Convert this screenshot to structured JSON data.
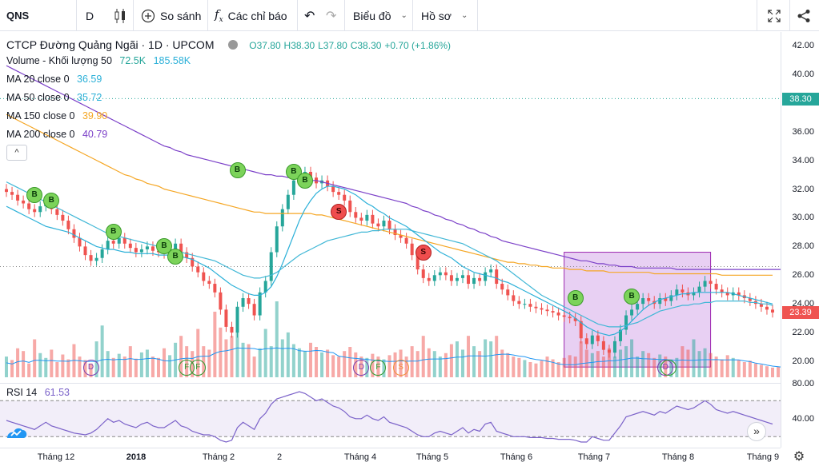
{
  "toolbar": {
    "symbol": "QNS",
    "interval": "D",
    "compare_label": "So sánh",
    "indicators_label": "Các chỉ báo",
    "chart_label": "Biểu đồ",
    "profile_label": "Hồ sơ"
  },
  "legend": {
    "title": "CTCP Đường Quảng Ngãi · 1D · UPCOM",
    "o": "O37.80",
    "h": "H38.30",
    "l": "L37.80",
    "c": "C38.30",
    "chg": "+0.70 (+1.86%)",
    "volume_label": "Volume - Khối lượng 50",
    "volume_v1": "72.5K",
    "volume_v2": "185.58K",
    "ma20_label": "MA 20 close 0",
    "ma20_value": "36.59",
    "ma50_label": "MA 50 close 0",
    "ma50_value": "35.72",
    "ma150_label": "MA 150 close 0",
    "ma150_value": "39.90",
    "ma200_label": "MA 200 close 0",
    "ma200_value": "40.79",
    "collapse_glyph": "^"
  },
  "price_axis": {
    "ticks": [
      "42.00",
      "40.00",
      "38.00",
      "36.00",
      "34.00",
      "32.00",
      "30.00",
      "28.00",
      "26.00",
      "24.00",
      "22.00",
      "20.00"
    ],
    "last_price": "38.30",
    "current_price": "23.39"
  },
  "rsi": {
    "label": "RSI 14",
    "value": "61.53",
    "ticks": [
      "80.00",
      "40.00"
    ]
  },
  "time_axis": [
    "Tháng 12",
    "2018",
    "Tháng 2",
    "2",
    "Tháng 4",
    "Tháng 5",
    "Tháng 6",
    "Tháng 7",
    "Tháng 8",
    "Tháng 9"
  ],
  "signals": [
    "B",
    "B",
    "B",
    "B",
    "B",
    "B",
    "B",
    "B",
    "S",
    "S",
    "B",
    "B"
  ],
  "events": [
    "D",
    "F",
    "F",
    "D",
    "F",
    "S",
    "D"
  ],
  "colors": {
    "up": "#26a69a",
    "down": "#ef5350",
    "ma20": "#2bb0d8",
    "ma50": "#40b7d6",
    "ma150": "#f5a623",
    "ma200": "#7b40c8",
    "rsi": "#7b62c9"
  },
  "chart_data": {
    "type": "candlestick",
    "title": "CTCP Đường Quảng Ngãi · 1D · UPCOM",
    "ylim": [
      19,
      43
    ],
    "rsi_ylim": [
      20,
      90
    ],
    "closes": [
      31.8,
      31.6,
      31.2,
      31.0,
      30.6,
      30.4,
      30.8,
      31.2,
      30.6,
      30.2,
      29.8,
      29.2,
      28.6,
      28.0,
      27.4,
      27.0,
      27.2,
      27.8,
      28.4,
      28.2,
      28.6,
      28.2,
      27.9,
      27.6,
      27.8,
      28.0,
      27.7,
      27.6,
      27.5,
      27.8,
      28.2,
      27.6,
      27.2,
      26.6,
      26.2,
      25.6,
      25.4,
      24.8,
      23.6,
      22.4,
      22.0,
      23.8,
      24.4,
      24.0,
      23.2,
      24.8,
      25.6,
      27.6,
      29.4,
      30.6,
      31.6,
      32.6,
      33.0,
      33.2,
      32.8,
      32.4,
      32.6,
      32.2,
      31.8,
      31.6,
      31.2,
      30.4,
      30.0,
      29.8,
      30.2,
      29.6,
      29.4,
      29.8,
      29.2,
      28.8,
      28.6,
      28.2,
      27.4,
      26.4,
      25.8,
      25.6,
      26.0,
      26.2,
      26.0,
      25.6,
      25.8,
      26.0,
      25.4,
      25.8,
      25.6,
      26.2,
      26.4,
      25.4,
      25.0,
      24.6,
      24.2,
      24.0,
      24.0,
      23.8,
      23.7,
      23.6,
      23.5,
      23.4,
      23.2,
      23.1,
      23.0,
      22.8,
      21.6,
      21.2,
      21.8,
      21.4,
      20.8,
      20.6,
      21.4,
      22.2,
      23.2,
      23.6,
      24.0,
      24.4,
      24.2,
      24.0,
      24.4,
      24.2,
      24.6,
      25.0,
      24.8,
      24.6,
      24.8,
      25.2,
      25.6,
      25.4,
      25.0,
      24.8,
      24.6,
      24.8,
      24.6,
      24.4,
      24.2,
      24.0,
      23.8,
      23.6,
      23.4
    ],
    "volumes": [
      30,
      25,
      42,
      38,
      20,
      55,
      35,
      28,
      40,
      22,
      33,
      26,
      48,
      30,
      25,
      20,
      52,
      75,
      38,
      28,
      34,
      30,
      45,
      27,
      36,
      40,
      30,
      28,
      42,
      32,
      50,
      60,
      45,
      38,
      70,
      45,
      40,
      95,
      72,
      55,
      60,
      88,
      50,
      48,
      30,
      42,
      70,
      45,
      110,
      55,
      65,
      48,
      42,
      38,
      50,
      44,
      36,
      40,
      32,
      30,
      38,
      44,
      36,
      30,
      28,
      34,
      30,
      26,
      32,
      36,
      40,
      30,
      45,
      38,
      60,
      42,
      38,
      30,
      35,
      48,
      52,
      40,
      60,
      45,
      38,
      55,
      52,
      60,
      40,
      35,
      30,
      28,
      25,
      22,
      20,
      24,
      30,
      26,
      22,
      28,
      32,
      30,
      52,
      40,
      35,
      38,
      30,
      42,
      30,
      40,
      45,
      55,
      30,
      38,
      35,
      28,
      33,
      30,
      26,
      28,
      45,
      40,
      55,
      38,
      42,
      35,
      30,
      26,
      32,
      28,
      25,
      22,
      24,
      20,
      18,
      16,
      14,
      15,
      13
    ],
    "rsi": [
      48,
      46,
      44,
      42,
      40,
      38,
      42,
      46,
      42,
      40,
      38,
      36,
      34,
      33,
      32,
      34,
      38,
      44,
      50,
      46,
      48,
      44,
      42,
      40,
      44,
      46,
      42,
      40,
      40,
      44,
      48,
      42,
      40,
      36,
      34,
      32,
      32,
      30,
      26,
      24,
      26,
      40,
      46,
      42,
      38,
      50,
      56,
      66,
      72,
      74,
      76,
      78,
      80,
      78,
      74,
      70,
      72,
      68,
      64,
      62,
      58,
      52,
      50,
      50,
      54,
      50,
      48,
      52,
      46,
      44,
      42,
      40,
      36,
      32,
      30,
      30,
      34,
      36,
      34,
      32,
      36,
      40,
      34,
      38,
      36,
      44,
      46,
      36,
      34,
      32,
      30,
      30,
      30,
      29,
      29,
      29,
      28,
      28,
      27,
      27,
      27,
      26,
      24,
      24,
      30,
      28,
      26,
      26,
      34,
      42,
      52,
      54,
      56,
      58,
      56,
      54,
      58,
      56,
      60,
      64,
      62,
      60,
      62,
      66,
      70,
      66,
      60,
      58,
      56,
      58,
      56,
      54,
      52,
      50,
      48,
      46,
      44
    ],
    "ma20": [
      30.8,
      30.6,
      30.4,
      30.2,
      30.0,
      29.8,
      29.6,
      29.4,
      29.3,
      29.2,
      29.1,
      29.0,
      28.8,
      28.6,
      28.4,
      28.2,
      28.0,
      27.9,
      27.8,
      27.8,
      27.7,
      27.6,
      27.6,
      27.5,
      27.5,
      27.5,
      27.5,
      27.4,
      27.4,
      27.4,
      27.4,
      27.3,
      27.2,
      27.1,
      26.9,
      26.7,
      26.5,
      26.2,
      25.9,
      25.6,
      25.3,
      25.1,
      24.9,
      24.7,
      24.6,
      24.6,
      24.8,
      25.2,
      25.9,
      26.8,
      27.8,
      28.8,
      29.8,
      30.6,
      31.2,
      31.7,
      32.0,
      32.2,
      32.2,
      32.1,
      32.0,
      31.8,
      31.6,
      31.3,
      31.0,
      30.8,
      30.5,
      30.3,
      30.0,
      29.8,
      29.6,
      29.4,
      29.1,
      28.8,
      28.5,
      28.2,
      27.9,
      27.6,
      27.4,
      27.2,
      26.9,
      26.6,
      26.4,
      26.2,
      26.1,
      26.0,
      25.9,
      25.8,
      25.6,
      25.5,
      25.3,
      25.1,
      24.9,
      24.7,
      24.5,
      24.3,
      24.1,
      23.9,
      23.7,
      23.5,
      23.3,
      23.0,
      22.7,
      22.4,
      22.2,
      22.0,
      21.9,
      21.8,
      21.9,
      22.1,
      22.4,
      22.8,
      23.2,
      23.6,
      23.9,
      24.1,
      24.3,
      24.4,
      24.5,
      24.6,
      24.7,
      24.7,
      24.8,
      24.8,
      24.8,
      24.8,
      24.8,
      24.8,
      24.8,
      24.7,
      24.6,
      24.5,
      24.4,
      24.3,
      24.2,
      24.1,
      24.0
    ],
    "ma50": [
      32.5,
      32.3,
      32.1,
      31.9,
      31.7,
      31.5,
      31.3,
      31.1,
      30.9,
      30.7,
      30.5,
      30.3,
      30.1,
      29.9,
      29.7,
      29.5,
      29.3,
      29.1,
      28.9,
      28.8,
      28.7,
      28.6,
      28.5,
      28.4,
      28.3,
      28.2,
      28.1,
      28.0,
      27.9,
      27.8,
      27.7,
      27.6,
      27.5,
      27.4,
      27.3,
      27.2,
      27.1,
      27.0,
      26.8,
      26.6,
      26.4,
      26.2,
      26.0,
      25.9,
      25.8,
      25.8,
      25.9,
      26.0,
      26.2,
      26.5,
      26.8,
      27.1,
      27.4,
      27.6,
      27.8,
      28.0,
      28.2,
      28.4,
      28.5,
      28.6,
      28.7,
      28.8,
      28.9,
      29.0,
      29.0,
      29.1,
      29.1,
      29.2,
      29.2,
      29.2,
      29.2,
      29.2,
      29.1,
      29.0,
      28.9,
      28.8,
      28.7,
      28.6,
      28.5,
      28.4,
      28.3,
      28.2,
      28.0,
      27.8,
      27.6,
      27.4,
      27.2,
      27.0,
      26.7,
      26.4,
      26.1,
      25.8,
      25.5,
      25.2,
      24.9,
      24.6,
      24.4,
      24.2,
      24.0,
      23.8,
      23.6,
      23.4,
      23.2,
      23.0,
      22.8,
      22.6,
      22.5,
      22.4,
      22.4,
      22.4,
      22.5,
      22.6,
      22.7,
      22.9,
      23.1,
      23.3,
      23.5,
      23.6,
      23.7,
      23.8,
      23.9,
      23.9,
      24.0,
      24.0,
      24.1,
      24.1,
      24.2,
      24.2,
      24.2,
      24.2,
      24.2,
      24.2,
      24.1,
      24.1,
      24.0,
      24.0,
      23.9
    ],
    "ma150": [
      37.2,
      37.0,
      36.8,
      36.6,
      36.4,
      36.2,
      36.0,
      35.8,
      35.6,
      35.4,
      35.2,
      35.0,
      34.8,
      34.6,
      34.4,
      34.2,
      34.0,
      33.8,
      33.6,
      33.4,
      33.2,
      33.0,
      32.9,
      32.7,
      32.6,
      32.4,
      32.3,
      32.2,
      32.0,
      31.9,
      31.8,
      31.7,
      31.6,
      31.5,
      31.4,
      31.3,
      31.2,
      31.1,
      31.0,
      30.9,
      30.8,
      30.7,
      30.6,
      30.5,
      30.4,
      30.4,
      30.3,
      30.3,
      30.3,
      30.3,
      30.3,
      30.3,
      30.3,
      30.3,
      30.3,
      30.2,
      30.2,
      30.1,
      30.0,
      29.9,
      29.8,
      29.7,
      29.6,
      29.5,
      29.4,
      29.3,
      29.2,
      29.1,
      29.0,
      28.9,
      28.8,
      28.7,
      28.6,
      28.5,
      28.4,
      28.3,
      28.2,
      28.1,
      28.0,
      27.9,
      27.8,
      27.7,
      27.6,
      27.5,
      27.4,
      27.3,
      27.2,
      27.1,
      27.0,
      26.9,
      26.9,
      26.8,
      26.8,
      26.7,
      26.7,
      26.6,
      26.6,
      26.5,
      26.5,
      26.5,
      26.4,
      26.4,
      26.4,
      26.3,
      26.3,
      26.3,
      26.3,
      26.2,
      26.2,
      26.2,
      26.2,
      26.2,
      26.2,
      26.2,
      26.2,
      26.1,
      26.1,
      26.1,
      26.1,
      26.1,
      26.1,
      26.1,
      26.1,
      26.1,
      26.1,
      26.1,
      26.1,
      26.0,
      26.0,
      26.0,
      26.0,
      26.0,
      26.0,
      26.0,
      26.0,
      26.0,
      26.0
    ],
    "ma200": [
      40.6,
      40.4,
      40.2,
      40.0,
      39.8,
      39.6,
      39.4,
      39.2,
      39.0,
      38.8,
      38.6,
      38.4,
      38.2,
      38.0,
      37.8,
      37.6,
      37.4,
      37.2,
      37.0,
      36.8,
      36.6,
      36.4,
      36.2,
      36.0,
      35.8,
      35.6,
      35.4,
      35.2,
      35.0,
      34.9,
      34.7,
      34.6,
      34.4,
      34.3,
      34.2,
      34.1,
      34.0,
      33.9,
      33.8,
      33.7,
      33.6,
      33.5,
      33.4,
      33.3,
      33.2,
      33.1,
      33.0,
      33.0,
      32.9,
      32.9,
      32.8,
      32.8,
      32.7,
      32.7,
      32.6,
      32.6,
      32.5,
      32.4,
      32.3,
      32.2,
      32.1,
      32.0,
      31.9,
      31.8,
      31.7,
      31.6,
      31.5,
      31.4,
      31.3,
      31.2,
      31.1,
      31.0,
      30.8,
      30.7,
      30.5,
      30.4,
      30.2,
      30.1,
      29.9,
      29.8,
      29.6,
      29.5,
      29.3,
      29.2,
      29.0,
      28.9,
      28.7,
      28.6,
      28.4,
      28.3,
      28.2,
      28.1,
      28.0,
      27.9,
      27.8,
      27.7,
      27.6,
      27.5,
      27.4,
      27.3,
      27.2,
      27.1,
      27.0,
      27.0,
      26.9,
      26.8,
      26.8,
      26.7,
      26.7,
      26.6,
      26.6,
      26.6,
      26.5,
      26.5,
      26.5,
      26.5,
      26.5,
      26.5,
      26.5,
      26.4,
      26.4,
      26.4,
      26.4,
      26.4,
      26.4,
      26.4,
      26.4,
      26.4,
      26.4,
      26.4,
      26.4,
      26.4,
      26.4,
      26.4,
      26.4,
      26.4,
      26.4,
      26.4,
      26.4
    ]
  }
}
